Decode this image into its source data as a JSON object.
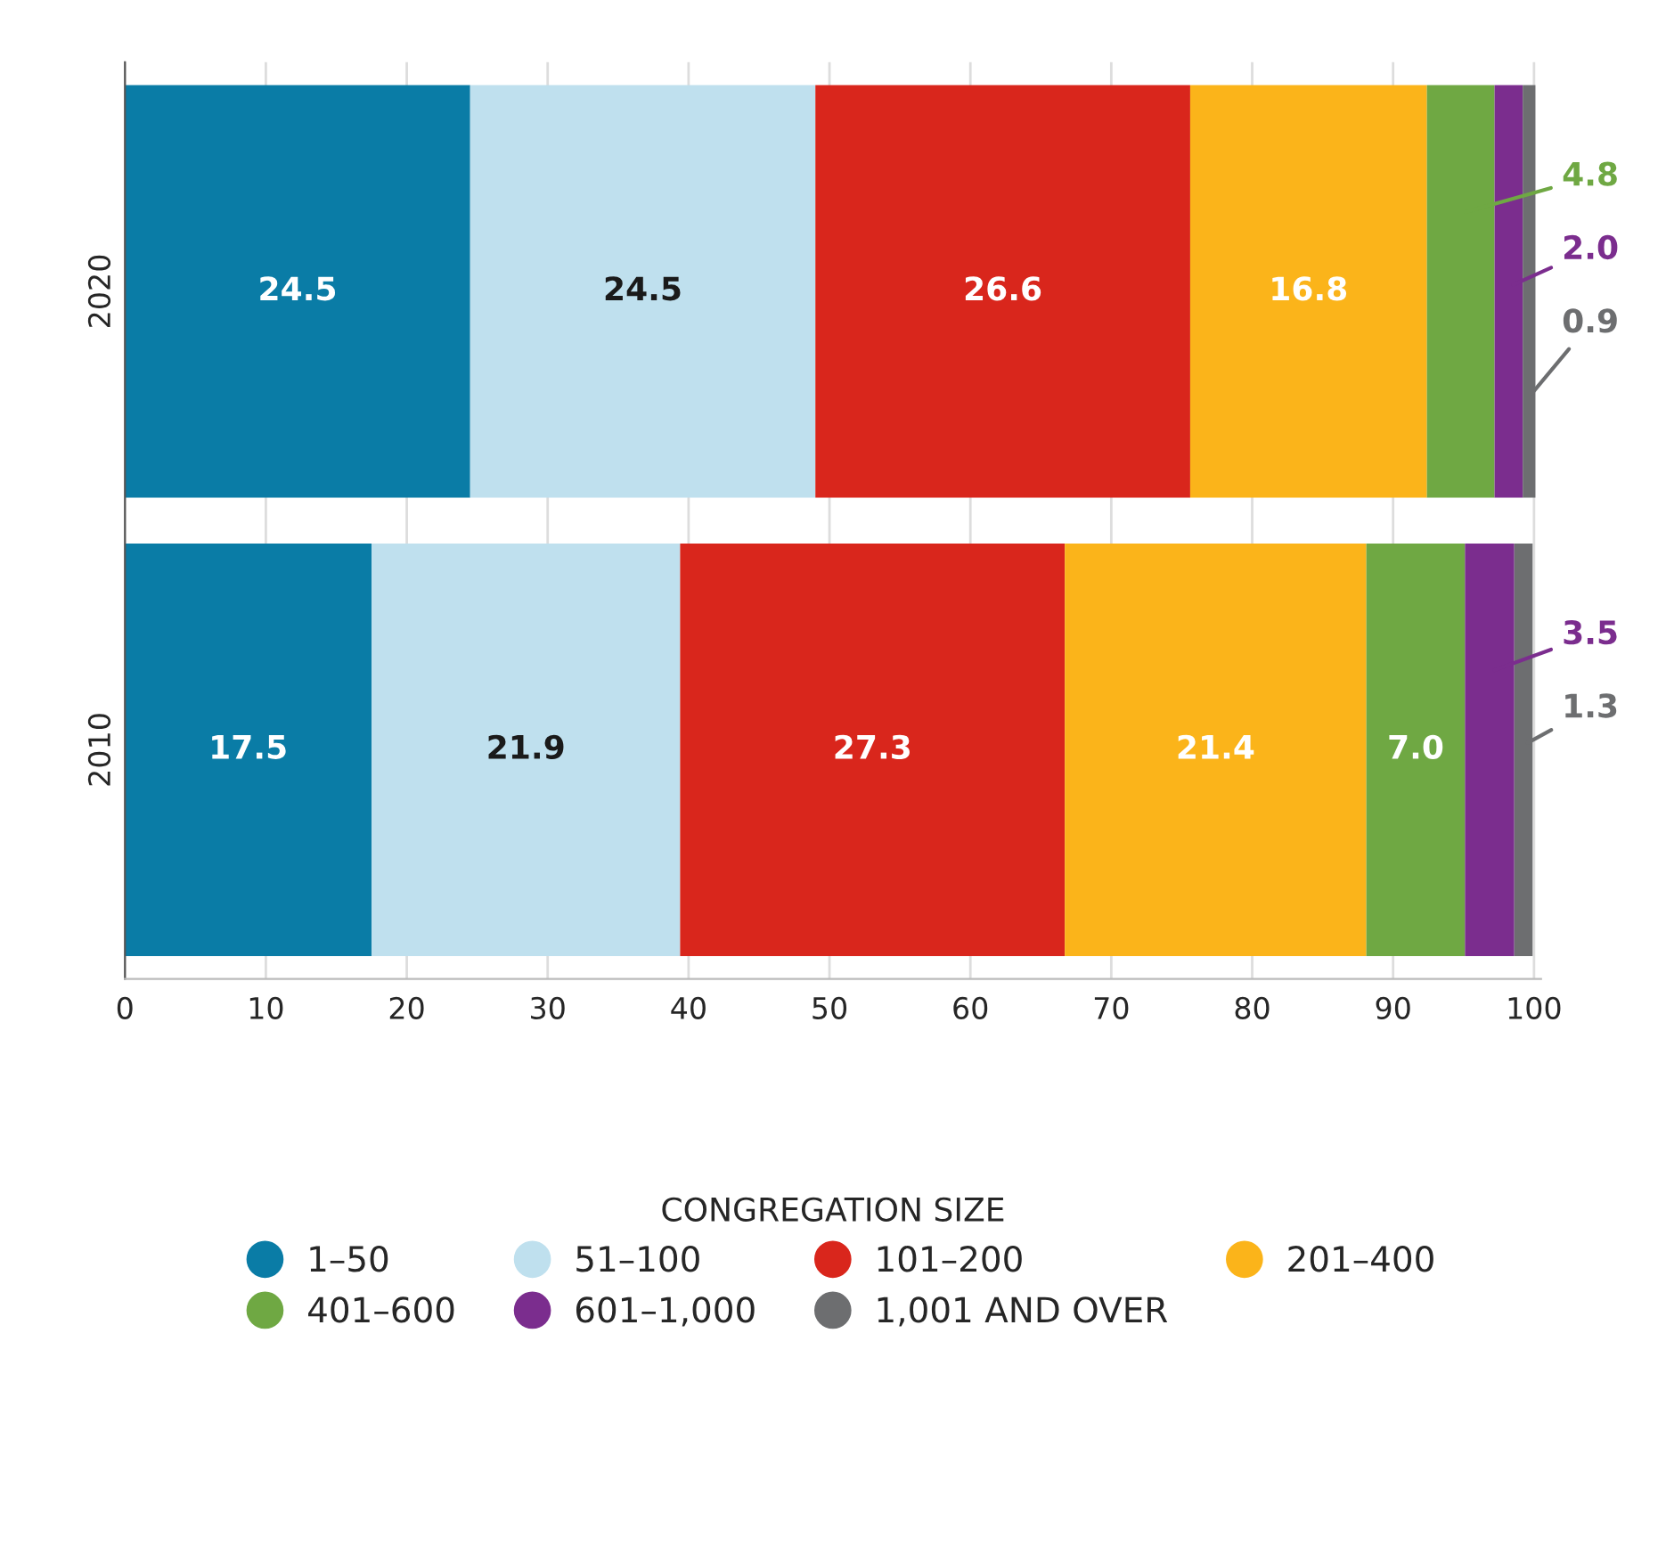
{
  "chart_data": {
    "type": "bar",
    "orientation": "horizontal",
    "stacked": true,
    "categories": [
      "2020",
      "2010"
    ],
    "series": [
      {
        "name": "1–50",
        "color": "#0a7ca6",
        "values": [
          24.5,
          17.5
        ],
        "value_labels": [
          "24.5",
          "17.5"
        ]
      },
      {
        "name": "51–100",
        "color": "#bfe0ee",
        "values": [
          24.5,
          21.9
        ],
        "value_labels": [
          "24.5",
          "21.9"
        ]
      },
      {
        "name": "101–200",
        "color": "#d9261c",
        "values": [
          26.6,
          27.3
        ],
        "value_labels": [
          "26.6",
          "27.3"
        ]
      },
      {
        "name": "201–400",
        "color": "#fbb41a",
        "values": [
          16.8,
          21.4
        ],
        "value_labels": [
          "16.8",
          "21.4"
        ]
      },
      {
        "name": "401–600",
        "color": "#6fa843",
        "values": [
          4.8,
          7.0
        ],
        "value_labels": [
          "4.8",
          "7.0"
        ]
      },
      {
        "name": "601–1,000",
        "color": "#7b2d8e",
        "values": [
          2.0,
          3.5
        ],
        "value_labels": [
          "2.0",
          "3.5"
        ]
      },
      {
        "name": "1,001 AND OVER",
        "color": "#6d6e70",
        "values": [
          0.9,
          1.3
        ],
        "value_labels": [
          "0.9",
          "1.3"
        ]
      }
    ],
    "xlim": [
      0,
      100.5
    ],
    "xticks": [
      0,
      10,
      20,
      30,
      40,
      50,
      60,
      70,
      80,
      90,
      100
    ],
    "grid": "x",
    "legend": "bottom",
    "legend_title": "CONGREGATION SIZE",
    "marker": "circle"
  }
}
